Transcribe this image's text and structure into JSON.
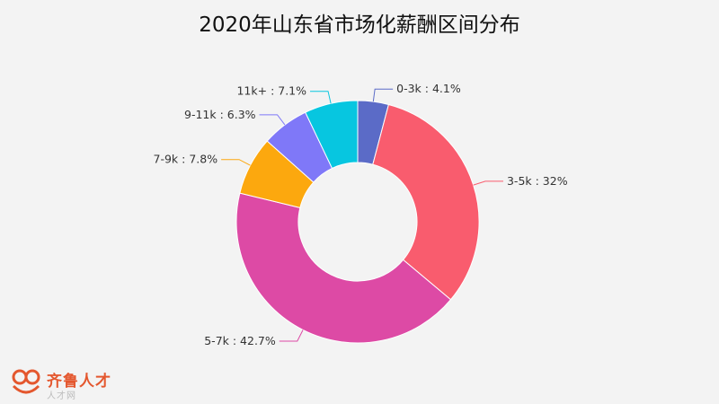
{
  "chart_data": {
    "type": "pie",
    "title": "2020年山东省市场化薪酬区间分布",
    "donut": true,
    "labels": [
      "0-3k",
      "3-5k",
      "5-7k",
      "7-9k",
      "9-11k",
      "11k+"
    ],
    "values": [
      4.1,
      32,
      42.7,
      7.8,
      6.3,
      7.1
    ],
    "value_labels": [
      "0-3k : 4.1%",
      "3-5k : 32%",
      "5-7k : 42.7%",
      "7-9k : 7.8%",
      "9-11k : 6.3%",
      "11k+ : 7.1%"
    ],
    "colors": [
      "#5b6bc7",
      "#f95c6e",
      "#dd4aa5",
      "#fca80e",
      "#7f78f8",
      "#07c6e0"
    ],
    "legend": "none"
  },
  "watermark": {
    "brand": "齐鲁人才",
    "sub": "人才网"
  }
}
